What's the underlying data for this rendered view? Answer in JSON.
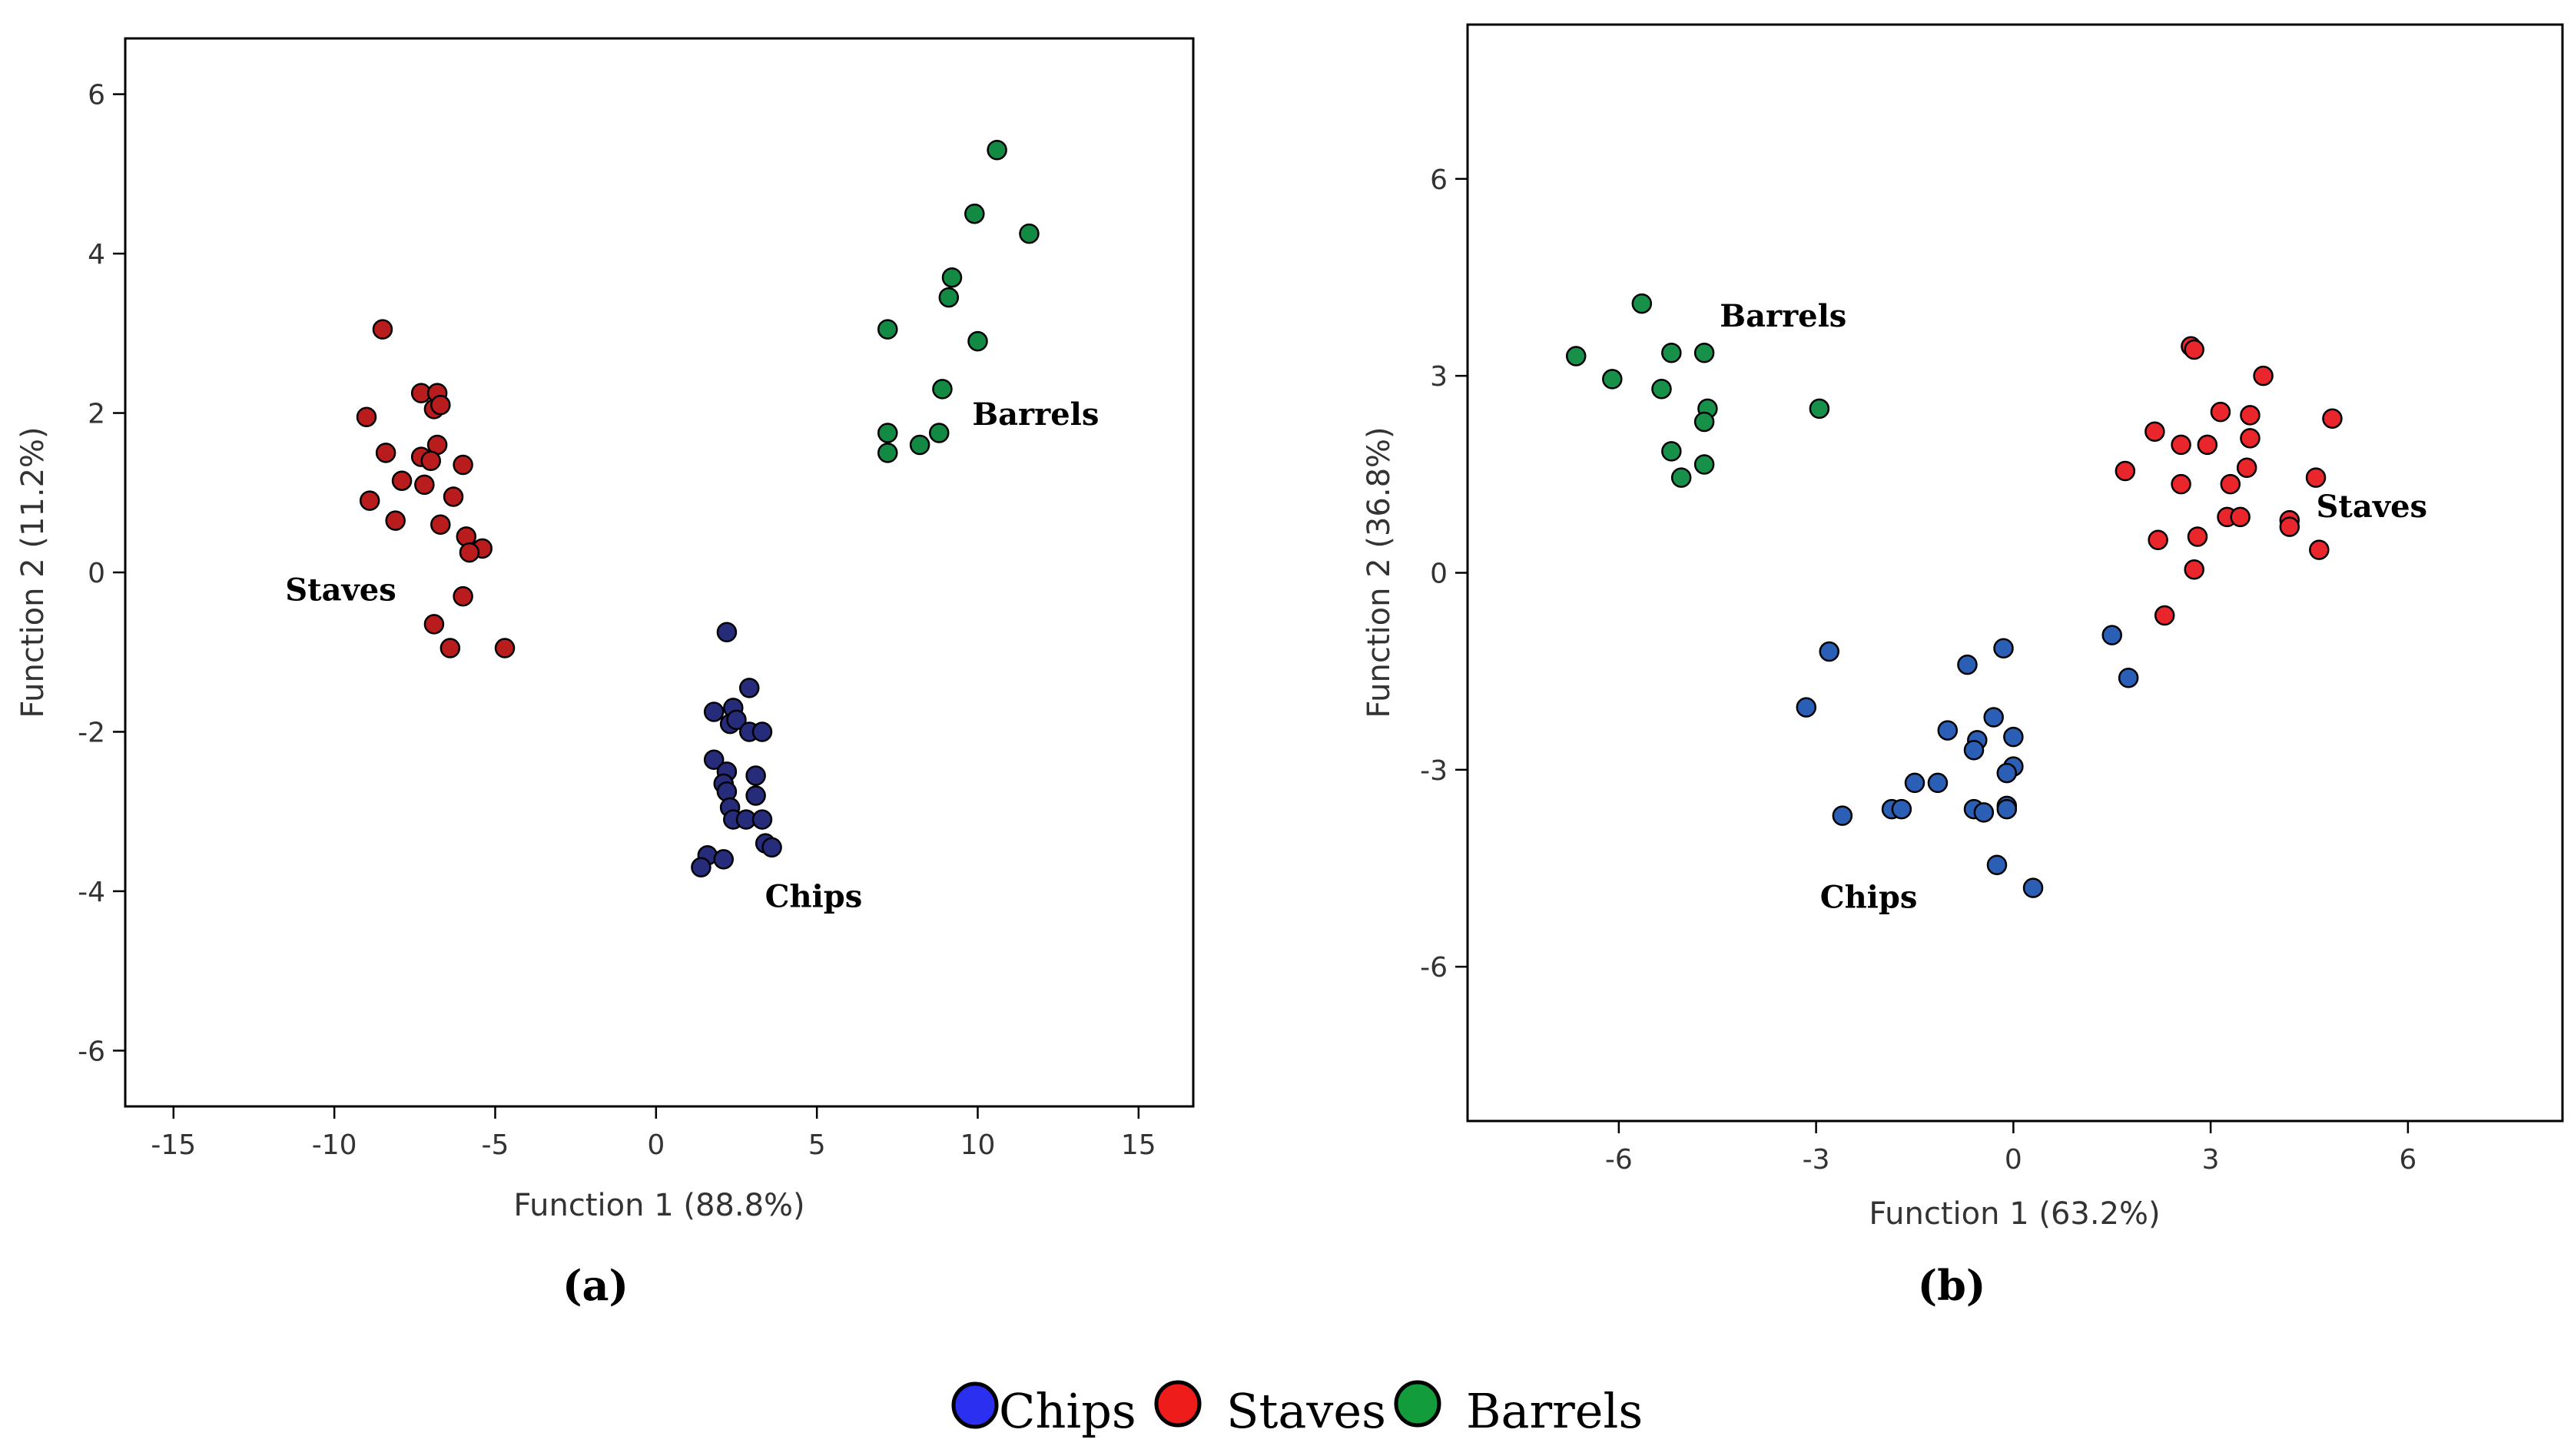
{
  "colors": {
    "chips_a": "#262c7a",
    "staves_a": "#b81c1c",
    "barrels_a": "#138a43",
    "chips_b": "#2b5fb5",
    "staves_b": "#e8262b",
    "barrels_b": "#17914a",
    "legend_chips": "#2b2ff0",
    "legend_staves": "#ef1c1c",
    "legend_barrels": "#139c3c"
  },
  "legend": {
    "chips": "Chips",
    "staves": "Staves",
    "barrels": "Barrels"
  },
  "chart_data": [
    {
      "type": "scatter",
      "panel_label": "(a)",
      "xlabel": "Function 1 (88.8%)",
      "ylabel": "Function 2 (11.2%)",
      "xlim": [
        -16.5,
        16.7
      ],
      "ylim": [
        -6.7,
        6.7
      ],
      "xticks": [
        -15,
        -10,
        -5,
        0,
        5,
        10,
        15
      ],
      "yticks": [
        -6,
        -4,
        -2,
        0,
        2,
        4,
        6
      ],
      "xtick_labels": [
        "-15",
        "-10",
        "-5",
        "0",
        "5",
        "10",
        "15"
      ],
      "ytick_labels": [
        "-6",
        "-4",
        "-2",
        "0",
        "2",
        "4",
        "6"
      ],
      "grid": false,
      "annotations": [
        {
          "text": "Staves",
          "x": -9.8,
          "y": -0.35
        },
        {
          "text": "Barrels",
          "x": 11.8,
          "y": 1.85
        },
        {
          "text": "Chips",
          "x": 4.9,
          "y": -4.2
        }
      ],
      "series": [
        {
          "name": "Chips",
          "color_key": "chips_a",
          "points": [
            [
              2.2,
              -0.75
            ],
            [
              2.9,
              -1.45
            ],
            [
              1.8,
              -1.75
            ],
            [
              2.4,
              -1.7
            ],
            [
              2.3,
              -1.9
            ],
            [
              2.5,
              -1.85
            ],
            [
              2.9,
              -2.0
            ],
            [
              3.3,
              -2.0
            ],
            [
              1.8,
              -2.35
            ],
            [
              2.2,
              -2.5
            ],
            [
              2.1,
              -2.65
            ],
            [
              3.1,
              -2.55
            ],
            [
              2.2,
              -2.75
            ],
            [
              3.1,
              -2.8
            ],
            [
              2.3,
              -2.95
            ],
            [
              2.4,
              -3.1
            ],
            [
              2.8,
              -3.1
            ],
            [
              3.3,
              -3.1
            ],
            [
              3.4,
              -3.4
            ],
            [
              3.6,
              -3.45
            ],
            [
              1.6,
              -3.55
            ],
            [
              2.1,
              -3.6
            ],
            [
              1.4,
              -3.7
            ]
          ]
        },
        {
          "name": "Staves",
          "color_key": "staves_a",
          "points": [
            [
              -8.5,
              3.05
            ],
            [
              -7.3,
              2.25
            ],
            [
              -6.8,
              2.25
            ],
            [
              -6.9,
              2.05
            ],
            [
              -6.7,
              2.1
            ],
            [
              -9.0,
              1.95
            ],
            [
              -6.8,
              1.6
            ],
            [
              -8.4,
              1.5
            ],
            [
              -7.3,
              1.45
            ],
            [
              -7.0,
              1.4
            ],
            [
              -6.0,
              1.35
            ],
            [
              -7.9,
              1.15
            ],
            [
              -7.2,
              1.1
            ],
            [
              -6.3,
              0.95
            ],
            [
              -8.9,
              0.9
            ],
            [
              -8.1,
              0.65
            ],
            [
              -6.7,
              0.6
            ],
            [
              -5.9,
              0.45
            ],
            [
              -5.4,
              0.3
            ],
            [
              -5.8,
              0.25
            ],
            [
              -6.0,
              -0.3
            ],
            [
              -6.9,
              -0.65
            ],
            [
              -6.4,
              -0.95
            ],
            [
              -4.7,
              -0.95
            ]
          ]
        },
        {
          "name": "Barrels",
          "color_key": "barrels_a",
          "points": [
            [
              10.6,
              5.3
            ],
            [
              9.9,
              4.5
            ],
            [
              11.6,
              4.25
            ],
            [
              9.2,
              3.7
            ],
            [
              9.1,
              3.45
            ],
            [
              7.2,
              3.05
            ],
            [
              10.0,
              2.9
            ],
            [
              8.9,
              2.3
            ],
            [
              7.2,
              1.75
            ],
            [
              8.8,
              1.75
            ],
            [
              8.2,
              1.6
            ],
            [
              7.2,
              1.5
            ]
          ]
        }
      ]
    },
    {
      "type": "scatter",
      "panel_label": "(b)",
      "xlabel": "Function 1 (63.2%)",
      "ylabel": "Function 2 (36.8%)",
      "xlim": [
        -8.3,
        8.35
      ],
      "ylim": [
        -8.35,
        8.35
      ],
      "xticks": [
        -6,
        -3,
        0,
        3,
        6
      ],
      "yticks": [
        -6,
        -3,
        0,
        3,
        6
      ],
      "xtick_labels": [
        "-6",
        "-3",
        "0",
        "3",
        "6"
      ],
      "ytick_labels": [
        "-6",
        "-3",
        "0",
        "3",
        "6"
      ],
      "grid": false,
      "annotations": [
        {
          "text": "Barrels",
          "x": -3.5,
          "y": 3.75
        },
        {
          "text": "Staves",
          "x": 5.45,
          "y": 0.85
        },
        {
          "text": "Chips",
          "x": -2.2,
          "y": -5.1
        }
      ],
      "series": [
        {
          "name": "Chips",
          "color_key": "chips_b",
          "points": [
            [
              -2.8,
              -1.2
            ],
            [
              -0.15,
              -1.15
            ],
            [
              -0.7,
              -1.4
            ],
            [
              -3.15,
              -2.05
            ],
            [
              -0.3,
              -2.2
            ],
            [
              -1.0,
              -2.4
            ],
            [
              0.0,
              -2.5
            ],
            [
              -0.55,
              -2.55
            ],
            [
              -0.6,
              -2.7
            ],
            [
              0.0,
              -2.95
            ],
            [
              -0.1,
              -3.05
            ],
            [
              -1.5,
              -3.2
            ],
            [
              -1.15,
              -3.2
            ],
            [
              -0.1,
              -3.55
            ],
            [
              -1.85,
              -3.6
            ],
            [
              -1.7,
              -3.6
            ],
            [
              -0.6,
              -3.6
            ],
            [
              -0.45,
              -3.65
            ],
            [
              -0.1,
              -3.6
            ],
            [
              -2.6,
              -3.7
            ],
            [
              -0.25,
              -4.45
            ],
            [
              0.3,
              -4.8
            ],
            [
              1.5,
              -0.95
            ],
            [
              1.75,
              -1.6
            ]
          ]
        },
        {
          "name": "Staves",
          "color_key": "staves_b",
          "points": [
            [
              2.7,
              3.45
            ],
            [
              2.75,
              3.4
            ],
            [
              3.8,
              3.0
            ],
            [
              3.15,
              2.45
            ],
            [
              3.6,
              2.4
            ],
            [
              4.85,
              2.35
            ],
            [
              2.15,
              2.15
            ],
            [
              2.55,
              1.95
            ],
            [
              2.95,
              1.95
            ],
            [
              3.6,
              2.05
            ],
            [
              1.7,
              1.55
            ],
            [
              3.55,
              1.6
            ],
            [
              2.55,
              1.35
            ],
            [
              3.3,
              1.35
            ],
            [
              4.6,
              1.45
            ],
            [
              3.25,
              0.85
            ],
            [
              3.45,
              0.85
            ],
            [
              4.2,
              0.8
            ],
            [
              4.2,
              0.7
            ],
            [
              2.2,
              0.5
            ],
            [
              2.8,
              0.55
            ],
            [
              4.65,
              0.35
            ],
            [
              2.75,
              0.05
            ],
            [
              2.3,
              -0.65
            ]
          ]
        },
        {
          "name": "Barrels",
          "color_key": "barrels_b",
          "points": [
            [
              -5.65,
              4.1
            ],
            [
              -5.2,
              3.35
            ],
            [
              -4.7,
              3.35
            ],
            [
              -6.65,
              3.3
            ],
            [
              -6.1,
              2.95
            ],
            [
              -5.35,
              2.8
            ],
            [
              -4.65,
              2.5
            ],
            [
              -2.95,
              2.5
            ],
            [
              -4.7,
              2.3
            ],
            [
              -5.2,
              1.85
            ],
            [
              -4.7,
              1.65
            ],
            [
              -5.05,
              1.45
            ]
          ]
        }
      ]
    }
  ]
}
